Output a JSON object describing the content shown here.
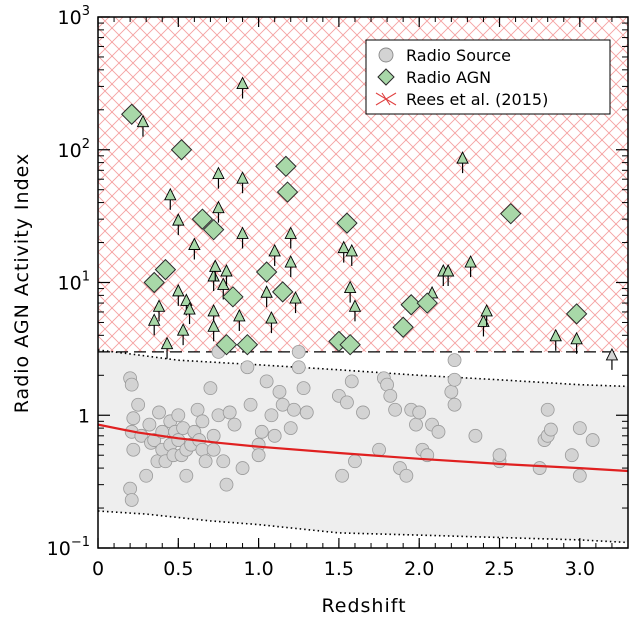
{
  "chart_data": {
    "type": "scatter",
    "xlabel": "Redshift",
    "ylabel": "Radio AGN Activity Index",
    "xlim": [
      0,
      3.3
    ],
    "ylim": [
      0.1,
      1000
    ],
    "yscale": "log",
    "x_ticks": [
      {
        "value": 0,
        "label": "0"
      },
      {
        "value": 0.5,
        "label": "0.5"
      },
      {
        "value": 1.0,
        "label": "1.0"
      },
      {
        "value": 1.5,
        "label": "1.5"
      },
      {
        "value": 2.0,
        "label": "2.0"
      },
      {
        "value": 2.5,
        "label": "2.5"
      },
      {
        "value": 3.0,
        "label": "3.0"
      }
    ],
    "y_ticks": [
      {
        "value": 0.1,
        "base": "10",
        "exp": "−1"
      },
      {
        "value": 1,
        "base": "1",
        "exp": ""
      },
      {
        "value": 10,
        "base": "10",
        "exp": "1"
      },
      {
        "value": 100,
        "base": "10",
        "exp": "2"
      },
      {
        "value": 1000,
        "base": "10",
        "exp": "3"
      }
    ],
    "threshold": 3.0,
    "legend": {
      "position": "top-right",
      "entries": [
        {
          "label": "Radio Source",
          "marker": "circle"
        },
        {
          "label": "Radio AGN",
          "marker": "diamond"
        },
        {
          "label": "Rees et al. (2015)",
          "marker": "hatch"
        }
      ]
    },
    "colors": {
      "radio_source": "#d3d3d3",
      "radio_agn": "#a8d8a8",
      "upper_limit": "#a8d8a8",
      "median_curve": "#e02020",
      "hatch": "#f4a0a0",
      "band": "#eeeeee"
    },
    "radio_sources": [
      [
        0.2,
        0.28
      ],
      [
        0.21,
        0.23
      ],
      [
        0.2,
        1.9
      ],
      [
        0.21,
        1.7
      ],
      [
        0.21,
        0.75
      ],
      [
        0.22,
        0.55
      ],
      [
        0.22,
        0.95
      ],
      [
        0.25,
        1.2
      ],
      [
        0.27,
        0.7
      ],
      [
        0.3,
        0.35
      ],
      [
        0.32,
        0.85
      ],
      [
        0.33,
        0.62
      ],
      [
        0.35,
        0.65
      ],
      [
        0.37,
        0.45
      ],
      [
        0.38,
        1.05
      ],
      [
        0.4,
        0.55
      ],
      [
        0.4,
        0.75
      ],
      [
        0.42,
        0.45
      ],
      [
        0.45,
        0.9
      ],
      [
        0.45,
        0.6
      ],
      [
        0.47,
        0.5
      ],
      [
        0.48,
        0.75
      ],
      [
        0.5,
        1.0
      ],
      [
        0.5,
        0.65
      ],
      [
        0.52,
        0.5
      ],
      [
        0.53,
        0.8
      ],
      [
        0.55,
        0.35
      ],
      [
        0.55,
        0.55
      ],
      [
        0.58,
        0.6
      ],
      [
        0.6,
        0.75
      ],
      [
        0.62,
        1.1
      ],
      [
        0.63,
        0.65
      ],
      [
        0.65,
        0.9
      ],
      [
        0.65,
        0.55
      ],
      [
        0.67,
        0.45
      ],
      [
        0.7,
        1.6
      ],
      [
        0.72,
        0.7
      ],
      [
        0.72,
        0.55
      ],
      [
        0.75,
        3.0
      ],
      [
        0.75,
        1.0
      ],
      [
        0.78,
        0.45
      ],
      [
        0.8,
        0.3
      ],
      [
        0.82,
        1.05
      ],
      [
        0.85,
        0.85
      ],
      [
        0.9,
        0.4
      ],
      [
        0.93,
        2.3
      ],
      [
        0.95,
        1.2
      ],
      [
        1.0,
        0.6
      ],
      [
        1.0,
        0.5
      ],
      [
        1.02,
        0.75
      ],
      [
        1.05,
        1.8
      ],
      [
        1.08,
        1.0
      ],
      [
        1.1,
        0.7
      ],
      [
        1.13,
        1.5
      ],
      [
        1.15,
        1.2
      ],
      [
        1.2,
        0.8
      ],
      [
        1.22,
        1.1
      ],
      [
        1.25,
        2.3
      ],
      [
        1.25,
        3.0
      ],
      [
        1.28,
        1.6
      ],
      [
        1.3,
        1.05
      ],
      [
        1.5,
        1.4
      ],
      [
        1.52,
        0.35
      ],
      [
        1.55,
        1.25
      ],
      [
        1.58,
        1.8
      ],
      [
        1.6,
        0.45
      ],
      [
        1.65,
        1.05
      ],
      [
        1.75,
        0.55
      ],
      [
        1.78,
        1.9
      ],
      [
        1.8,
        1.7
      ],
      [
        1.82,
        1.4
      ],
      [
        1.85,
        1.1
      ],
      [
        1.88,
        0.4
      ],
      [
        1.92,
        0.35
      ],
      [
        1.95,
        1.1
      ],
      [
        1.98,
        0.85
      ],
      [
        2.0,
        1.05
      ],
      [
        2.02,
        0.55
      ],
      [
        2.05,
        0.5
      ],
      [
        2.08,
        0.85
      ],
      [
        2.12,
        0.75
      ],
      [
        2.2,
        1.5
      ],
      [
        2.22,
        1.2
      ],
      [
        2.22,
        1.85
      ],
      [
        2.22,
        2.6
      ],
      [
        2.35,
        0.7
      ],
      [
        2.5,
        0.45
      ],
      [
        2.5,
        0.5
      ],
      [
        2.75,
        0.4
      ],
      [
        2.78,
        0.65
      ],
      [
        2.8,
        1.1
      ],
      [
        2.8,
        0.7
      ],
      [
        2.82,
        0.78
      ],
      [
        2.95,
        0.5
      ],
      [
        3.0,
        0.35
      ],
      [
        3.0,
        0.8
      ],
      [
        3.08,
        0.65
      ]
    ],
    "radio_agn": [
      [
        0.21,
        185
      ],
      [
        0.35,
        10
      ],
      [
        0.42,
        12.5
      ],
      [
        0.52,
        100
      ],
      [
        0.65,
        30
      ],
      [
        0.72,
        25
      ],
      [
        0.8,
        3.4
      ],
      [
        0.84,
        7.8
      ],
      [
        0.93,
        3.4
      ],
      [
        1.05,
        12
      ],
      [
        1.15,
        8.5
      ],
      [
        1.17,
        75
      ],
      [
        1.18,
        48
      ],
      [
        1.5,
        3.6
      ],
      [
        1.55,
        28
      ],
      [
        1.57,
        3.4
      ],
      [
        1.9,
        4.6
      ],
      [
        1.95,
        6.8
      ],
      [
        2.05,
        7.0
      ],
      [
        2.57,
        33
      ],
      [
        2.98,
        5.8
      ]
    ],
    "upper_limits": [
      [
        0.28,
        160
      ],
      [
        0.35,
        5.1
      ],
      [
        0.38,
        6.5
      ],
      [
        0.43,
        3.4
      ],
      [
        0.45,
        45
      ],
      [
        0.5,
        29
      ],
      [
        0.5,
        8.5
      ],
      [
        0.53,
        4.3
      ],
      [
        0.55,
        7.2
      ],
      [
        0.57,
        6.2
      ],
      [
        0.6,
        19
      ],
      [
        0.72,
        6.0
      ],
      [
        0.72,
        4.6
      ],
      [
        0.72,
        11
      ],
      [
        0.73,
        13
      ],
      [
        0.75,
        36
      ],
      [
        0.75,
        65
      ],
      [
        0.78,
        9.5
      ],
      [
        0.8,
        12
      ],
      [
        0.88,
        5.5
      ],
      [
        0.9,
        23
      ],
      [
        0.9,
        310
      ],
      [
        0.9,
        60
      ],
      [
        1.05,
        8.3
      ],
      [
        1.08,
        5.3
      ],
      [
        1.1,
        17
      ],
      [
        1.2,
        14
      ],
      [
        1.2,
        23
      ],
      [
        1.23,
        7.5
      ],
      [
        1.53,
        18
      ],
      [
        1.57,
        9.0
      ],
      [
        1.58,
        17
      ],
      [
        1.6,
        6.5
      ],
      [
        2.08,
        8.2
      ],
      [
        2.15,
        12
      ],
      [
        2.18,
        12
      ],
      [
        2.27,
        85
      ],
      [
        2.32,
        14
      ],
      [
        2.4,
        5.0
      ],
      [
        2.42,
        6.0
      ],
      [
        2.85,
        3.9
      ],
      [
        2.98,
        3.7
      ],
      [
        3.2,
        2.8
      ]
    ],
    "median_curve": [
      [
        0,
        0.85
      ],
      [
        0.25,
        0.74
      ],
      [
        0.5,
        0.67
      ],
      [
        0.75,
        0.62
      ],
      [
        1.0,
        0.58
      ],
      [
        1.5,
        0.52
      ],
      [
        2.0,
        0.47
      ],
      [
        2.5,
        0.43
      ],
      [
        3.0,
        0.4
      ],
      [
        3.3,
        0.38
      ]
    ],
    "band_upper": [
      [
        0,
        3.1
      ],
      [
        0.2,
        2.9
      ],
      [
        0.5,
        2.6
      ],
      [
        1.0,
        2.4
      ],
      [
        1.5,
        2.2
      ],
      [
        2.0,
        2.0
      ],
      [
        2.5,
        1.85
      ],
      [
        3.0,
        1.7
      ],
      [
        3.3,
        1.65
      ]
    ],
    "band_lower": [
      [
        0,
        0.19
      ],
      [
        0.3,
        0.18
      ],
      [
        0.7,
        0.16
      ],
      [
        1.0,
        0.15
      ],
      [
        1.5,
        0.13
      ],
      [
        2.0,
        0.125
      ],
      [
        2.5,
        0.12
      ],
      [
        3.0,
        0.115
      ],
      [
        3.3,
        0.11
      ]
    ]
  }
}
